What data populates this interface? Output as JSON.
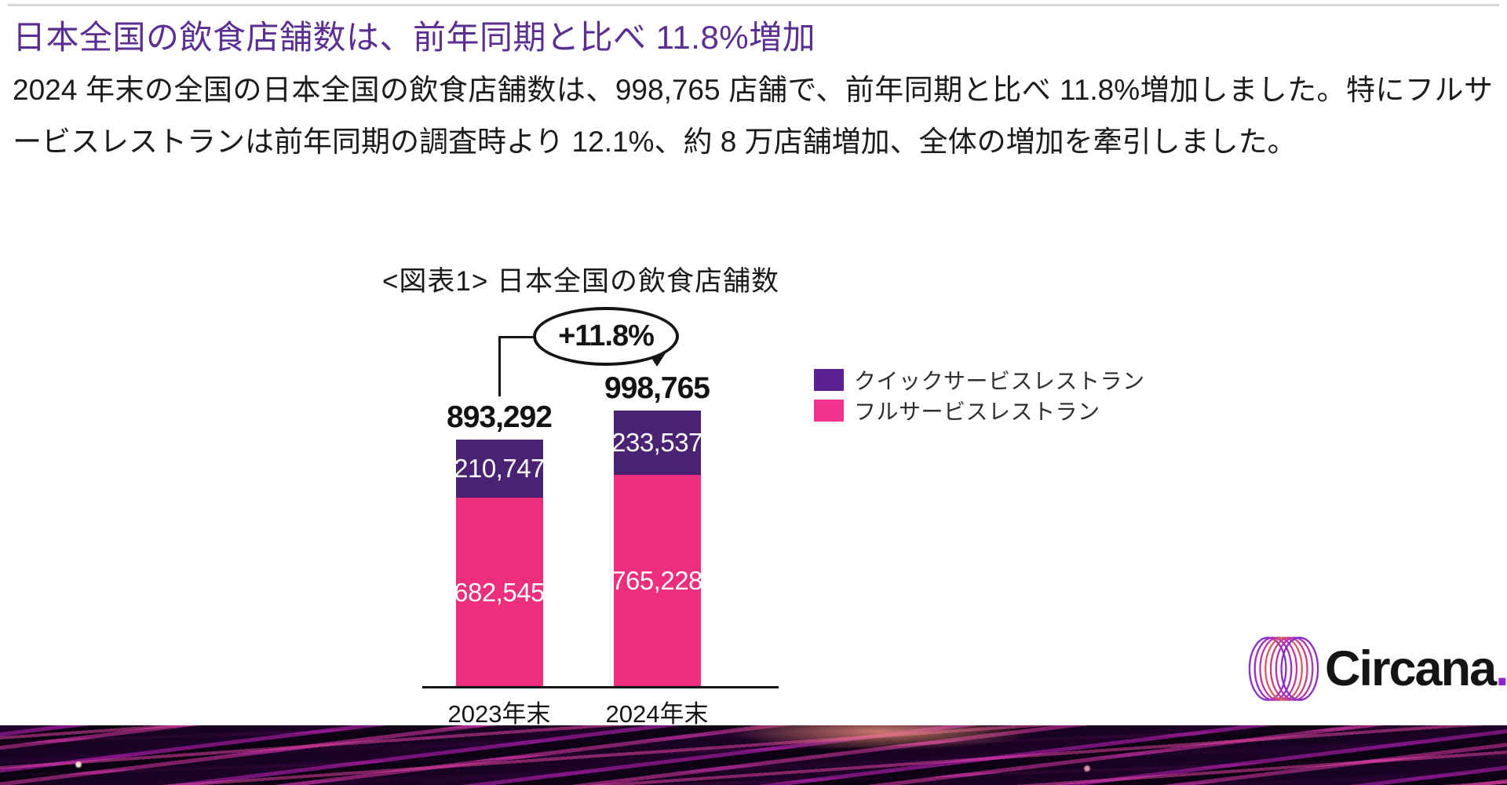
{
  "header": {
    "title": "日本全国の飲食店舗数は、前年同期と比べ 11.8%増加",
    "title_color": "#5b2e91"
  },
  "body": {
    "paragraph": "2024 年末の全国の日本全国の飲食店舗数は、998,765 店舗で、前年同期と比べ 11.8%増加しました。特にフルサービスレストランは前年同期の調査時より 12.1%、約 8 万店舗増加、全体の増加を牽引しました。"
  },
  "chart_data": {
    "type": "bar",
    "stacked": true,
    "title": "<図表1> 日本全国の飲食店舗数",
    "categories": [
      "2023年末",
      "2024年末"
    ],
    "series": [
      {
        "name": "クイックサービスレストラン",
        "color": "#4a2173",
        "values": [
          210747,
          233537
        ]
      },
      {
        "name": "フルサービスレストラン",
        "color": "#ec2e7d",
        "values": [
          682545,
          765228
        ]
      }
    ],
    "totals": [
      893292,
      998765
    ],
    "total_labels": [
      "893,292",
      "998,765"
    ],
    "value_labels": [
      [
        "210,747",
        "233,537"
      ],
      [
        "682,545",
        "765,228"
      ]
    ],
    "annotation": "+11.8%",
    "legend_position": "right",
    "grid": false,
    "ylabel": "",
    "xlabel": ""
  },
  "legend": {
    "qsr_color": "#5a2090",
    "fsr_color": "#f2348c"
  },
  "logo": {
    "text": "Circana",
    "dot": ".",
    "dot_color": "#9120d4"
  }
}
